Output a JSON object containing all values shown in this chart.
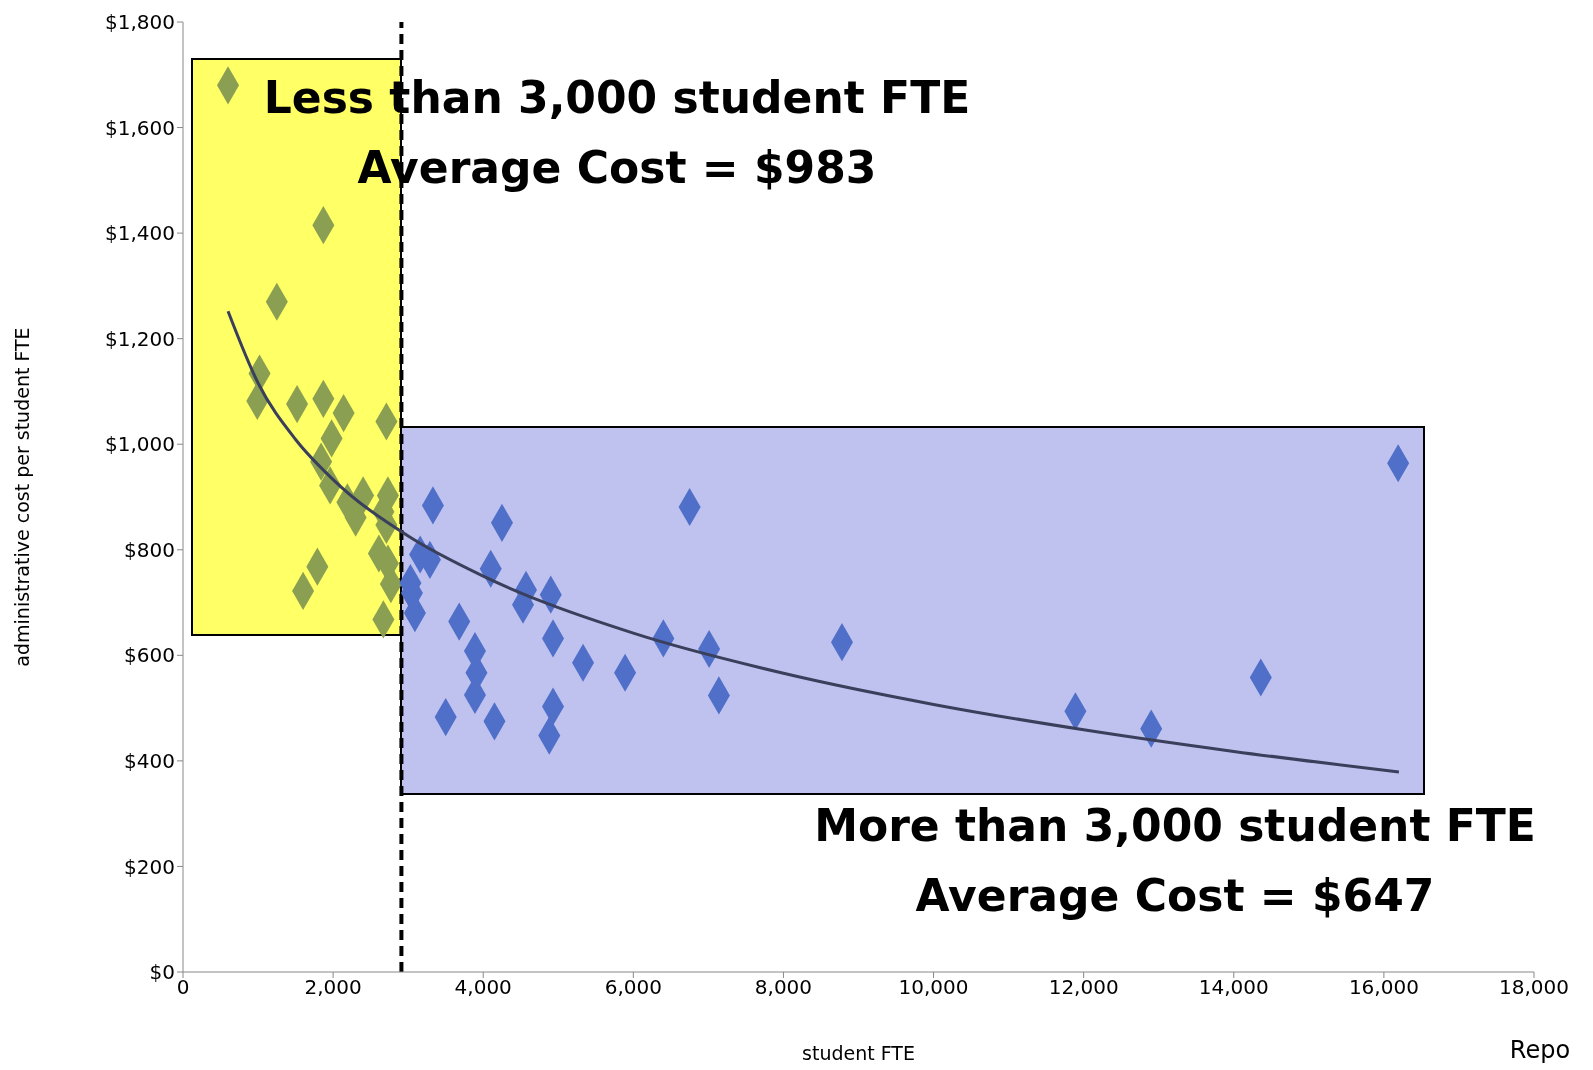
{
  "chart_data": {
    "type": "scatter",
    "xlabel": "student FTE",
    "ylabel": "administrative cost per student FTE",
    "xlim": [
      0,
      18000
    ],
    "xticks": [
      {
        "value": 0,
        "label": "0"
      },
      {
        "value": 2000,
        "label": "2,000"
      },
      {
        "value": 4000,
        "label": "4,000"
      },
      {
        "value": 6000,
        "label": "6,000"
      },
      {
        "value": 8000,
        "label": "8,000"
      },
      {
        "value": 10000,
        "label": "10,000"
      },
      {
        "value": 12000,
        "label": "12,000"
      },
      {
        "value": 14000,
        "label": "14,000"
      },
      {
        "value": 16000,
        "label": "16,000"
      },
      {
        "value": 18000,
        "label": "18,000"
      }
    ],
    "ylim": [
      0,
      1800
    ],
    "yticks": [
      {
        "value": 0,
        "label": "$0"
      },
      {
        "value": 200,
        "label": "$200"
      },
      {
        "value": 400,
        "label": "$400"
      },
      {
        "value": 600,
        "label": "$600"
      },
      {
        "value": 800,
        "label": "$800"
      },
      {
        "value": 1000,
        "label": "$1,000"
      },
      {
        "value": 1200,
        "label": "$1,200"
      },
      {
        "value": 1400,
        "label": "$1,400"
      },
      {
        "value": 1600,
        "label": "$1,600"
      },
      {
        "value": 1800,
        "label": "$1,800"
      }
    ],
    "grid": false,
    "legend": false,
    "marker": "diamond",
    "series": [
      {
        "color": "#8a9f52",
        "x": [
          600,
          1870,
          1250,
          1020,
          990,
          1520,
          1870,
          2140,
          1980,
          2710,
          1840,
          1960,
          2300,
          2400,
          2190,
          2730,
          2670,
          2710,
          2610,
          2770,
          1790,
          1600,
          2670,
          2730
        ],
        "values": [
          1680,
          1415,
          1270,
          1134,
          1082,
          1076,
          1086,
          1059,
          1011,
          1043,
          967,
          922,
          861,
          903,
          890,
          903,
          872,
          847,
          793,
          735,
          768,
          722,
          668,
          774
        ]
      },
      {
        "color": "#4f6fc8",
        "x": [
          3330,
          4250,
          6750,
          3290,
          3160,
          4100,
          4570,
          4530,
          4900,
          3030,
          3050,
          3090,
          3680,
          4930,
          3890,
          3910,
          3890,
          5330,
          5890,
          6400,
          7010,
          7140,
          4930,
          3500,
          4150,
          4880,
          8780,
          11890,
          12900,
          14360,
          16190
        ],
        "values": [
          884,
          851,
          881,
          781,
          791,
          764,
          724,
          696,
          715,
          737,
          718,
          680,
          664,
          632,
          608,
          567,
          525,
          586,
          567,
          632,
          612,
          524,
          503,
          483,
          475,
          448,
          625,
          494,
          461,
          558,
          964
        ]
      },
      {
        "type": "line",
        "color": "#3a3f5c",
        "marker": "none",
        "x": [
          600,
          1000,
          1500,
          2000,
          3000,
          4000,
          6000,
          8000,
          10000,
          12000,
          14000,
          16200
        ],
        "values": [
          1252,
          1116,
          1009,
          933,
          826,
          750,
          642,
          566,
          507,
          459,
          418,
          379
        ]
      }
    ],
    "ref_lines": [
      {
        "axis": "x",
        "value": 2910,
        "color": "#000000",
        "line_style": "dashed"
      }
    ],
    "annotations": [
      "Less than 3,000 student FTE",
      "Average Cost = $983",
      "More than 3,000 student FTE",
      "Average Cost = $647",
      "Repo"
    ]
  }
}
